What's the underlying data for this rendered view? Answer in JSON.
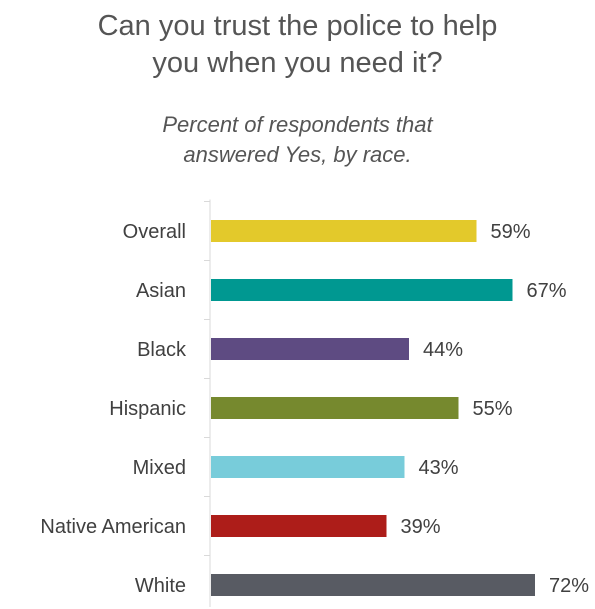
{
  "chart_data": {
    "type": "bar",
    "orientation": "horizontal",
    "title": [
      "Can you trust the police to help",
      "you when you need it?"
    ],
    "subtitle": [
      "Percent of respondents that",
      "answered Yes, by race."
    ],
    "categories": [
      "Overall",
      "Asian",
      "Black",
      "Hispanic",
      "Mixed",
      "Native American",
      "White"
    ],
    "values": [
      59,
      67,
      44,
      55,
      43,
      39,
      72
    ],
    "value_labels": [
      "59%",
      "67%",
      "44%",
      "55%",
      "43%",
      "39%",
      "72%"
    ],
    "colors": [
      "#e3c92b",
      "#009891",
      "#5e4b82",
      "#76892e",
      "#78ccda",
      "#ad1d19",
      "#585b63"
    ],
    "xlim": [
      0,
      100
    ],
    "grid": false,
    "legend": "none"
  }
}
